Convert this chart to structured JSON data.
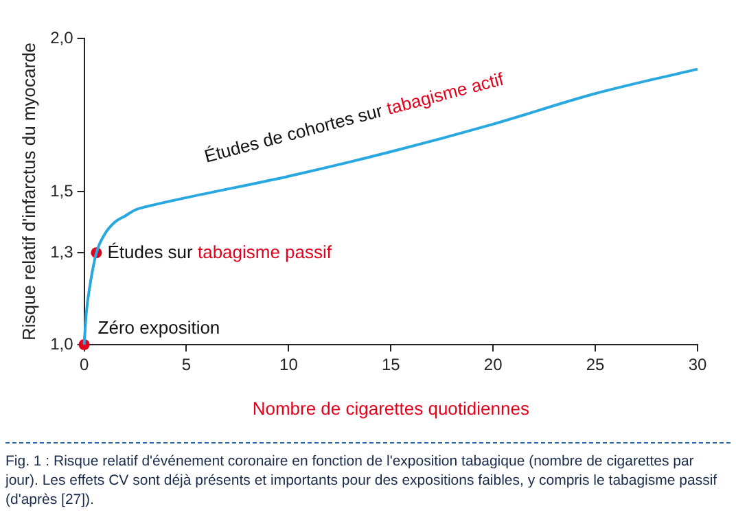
{
  "chart_data": {
    "type": "line",
    "xlabel": "Nombre de cigarettes quotidiennes",
    "ylabel": "Risque relatif d'infarctus du myocarde",
    "xlim": [
      0,
      30
    ],
    "xticks": [
      0,
      5,
      10,
      15,
      20,
      25,
      30
    ],
    "ylim": [
      1.0,
      2.0
    ],
    "yticks": [
      {
        "value": 1.0,
        "label": "1,0"
      },
      {
        "value": 1.3,
        "label": "1,3"
      },
      {
        "value": 1.5,
        "label": "1,5"
      },
      {
        "value": 2.0,
        "label": "2,0"
      }
    ],
    "grid": false,
    "legend": false,
    "series": [
      {
        "type": "line",
        "color": "#29a8e0",
        "x": [
          0,
          0.1,
          0.3,
          0.6,
          1,
          1.5,
          2,
          2.5,
          3,
          5,
          10,
          15,
          20,
          25,
          30
        ],
        "values": [
          1.0,
          1.1,
          1.2,
          1.3,
          1.36,
          1.4,
          1.42,
          1.44,
          1.45,
          1.48,
          1.55,
          1.63,
          1.72,
          1.82,
          1.9
        ]
      },
      {
        "type": "scatter",
        "color": "#e3001b",
        "marker": "circle",
        "x": [
          0,
          0.6
        ],
        "values": [
          1.0,
          1.3
        ]
      }
    ],
    "annotations": [
      "Zéro exposition",
      "Études sur",
      "tabagisme passif",
      "Études de cohortes sur",
      "tabagisme actif",
      "Fig. 1 : Risque relatif d'événement coronaire en fonction de l'exposition tabagique (nombre de cigarettes par jour). Les effets CV sont déjà présents et importants pour des expositions faibles, y compris le tabagisme passif (d'après [27])."
    ]
  }
}
